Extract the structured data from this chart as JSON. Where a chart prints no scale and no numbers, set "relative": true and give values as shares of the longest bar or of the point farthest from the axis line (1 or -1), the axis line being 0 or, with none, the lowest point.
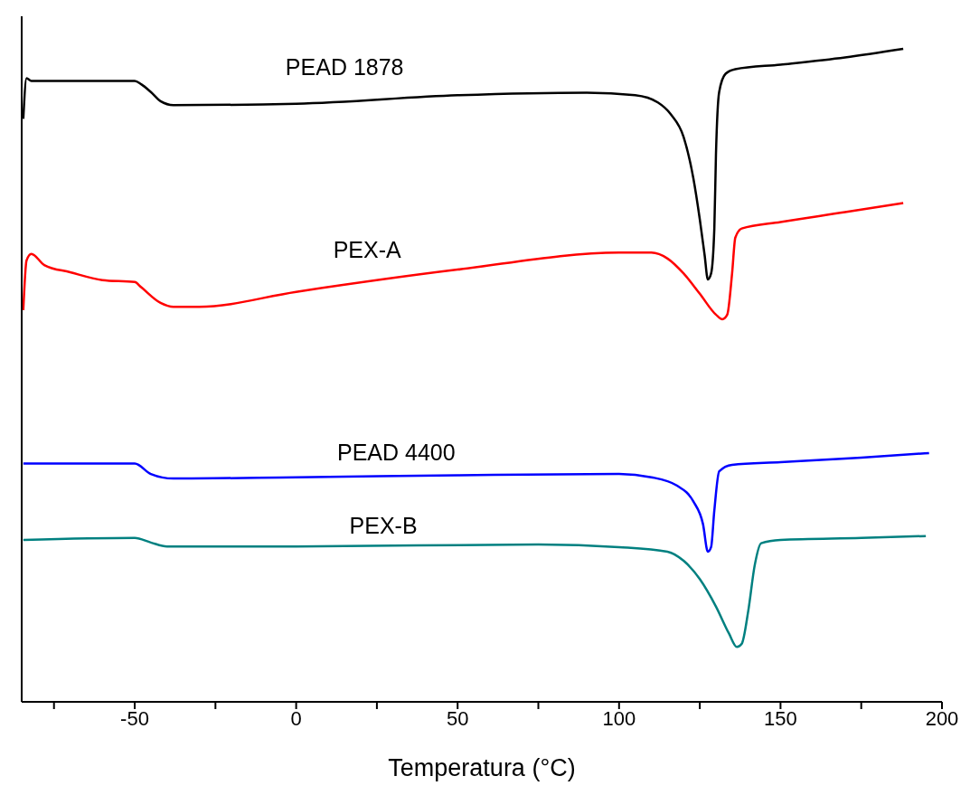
{
  "chart_data": {
    "type": "line",
    "xlabel": "Temperatura (°C)",
    "relative": true,
    "xlim": [
      -85,
      200
    ],
    "xticks": [
      {
        "value": -75,
        "label": null
      },
      -50,
      {
        "value": -25,
        "label": null
      },
      0,
      {
        "value": 25,
        "label": null
      },
      50,
      {
        "value": 75,
        "label": null
      },
      100,
      {
        "value": 125,
        "label": null
      },
      150,
      {
        "value": 175,
        "label": null
      },
      200
    ],
    "grid": false,
    "legend": false,
    "marker": "none",
    "line_style": "solid",
    "series": [
      {
        "name": "PEAD 1878",
        "color": "#000000",
        "x": [
          -84.5,
          -83.5,
          -82,
          -80,
          -50,
          -48,
          -45,
          -42,
          -38,
          0,
          50,
          90,
          105,
          112,
          116,
          120,
          123,
          125,
          126.5,
          127.5,
          128.5,
          129.5,
          130,
          131,
          133,
          136,
          150,
          170,
          188
        ],
        "values": [
          0.893,
          0.955,
          0.951,
          0.951,
          0.951,
          0.946,
          0.934,
          0.92,
          0.914,
          0.916,
          0.929,
          0.933,
          0.929,
          0.918,
          0.9,
          0.865,
          0.802,
          0.739,
          0.684,
          0.647,
          0.656,
          0.725,
          0.837,
          0.934,
          0.962,
          0.969,
          0.976,
          0.987,
          1
        ]
      },
      {
        "name": "PEX-A",
        "color": "#ff0000",
        "x": [
          -84.5,
          -83.5,
          -82,
          -78,
          -70,
          -60,
          -50,
          -48,
          -42,
          -38,
          -30,
          0,
          50,
          100,
          110,
          115,
          120,
          125,
          130,
          132,
          133.5,
          135,
          136,
          138,
          150,
          170,
          188
        ],
        "values": [
          0.6,
          0.676,
          0.686,
          0.669,
          0.658,
          0.646,
          0.643,
          0.635,
          0.611,
          0.605,
          0.605,
          0.628,
          0.662,
          0.688,
          0.688,
          0.679,
          0.656,
          0.625,
          0.593,
          0.586,
          0.593,
          0.656,
          0.711,
          0.725,
          0.735,
          0.75,
          0.764
        ]
      },
      {
        "name": "PEAD 4400",
        "color": "#0000ff",
        "x": [
          -84.5,
          -50,
          -45,
          -38,
          0,
          50,
          100,
          110,
          118,
          123,
          126,
          127.5,
          128.5,
          129.5,
          131,
          135,
          150,
          175,
          196
        ],
        "values": [
          0.365,
          0.365,
          0.349,
          0.342,
          0.344,
          0.347,
          0.349,
          0.344,
          0.331,
          0.307,
          0.272,
          0.23,
          0.237,
          0.293,
          0.353,
          0.363,
          0.367,
          0.374,
          0.381
        ]
      },
      {
        "name": "PEX-B",
        "color": "#008080",
        "x": [
          -84.5,
          -50,
          -45,
          -40,
          0,
          75,
          100,
          115,
          120,
          125,
          130,
          134,
          136.5,
          138,
          140,
          142,
          144,
          150,
          175,
          195
        ],
        "values": [
          0.248,
          0.251,
          0.244,
          0.238,
          0.238,
          0.241,
          0.237,
          0.23,
          0.216,
          0.188,
          0.146,
          0.105,
          0.084,
          0.089,
          0.139,
          0.209,
          0.243,
          0.248,
          0.251,
          0.254
        ]
      }
    ]
  }
}
